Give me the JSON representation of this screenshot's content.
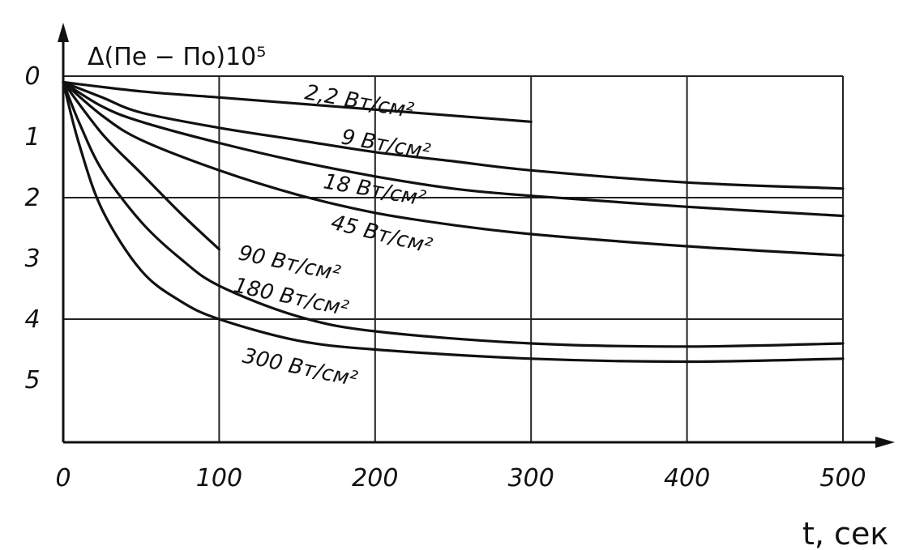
{
  "chart_data": {
    "type": "line",
    "title": "",
    "ylabel": "Δ(Пe − Пo)10⁵",
    "xlabel": "t, сек",
    "xlim": [
      0,
      500
    ],
    "ylim": [
      0,
      6
    ],
    "y_inverted": true,
    "grid": true,
    "x_ticks": [
      "0",
      "100",
      "200",
      "300",
      "400",
      "500"
    ],
    "y_ticks": [
      "0",
      "1",
      "2",
      "3",
      "4",
      "5"
    ],
    "series": [
      {
        "name": "2,2 Вт/см²",
        "x": [
          0,
          50,
          100,
          150,
          200,
          250,
          300
        ],
        "y": [
          0.1,
          0.25,
          0.35,
          0.45,
          0.55,
          0.65,
          0.75
        ]
      },
      {
        "name": "9 Вт/см²",
        "x": [
          0,
          25,
          50,
          100,
          150,
          200,
          250,
          300,
          400,
          500
        ],
        "y": [
          0.1,
          0.35,
          0.6,
          0.85,
          1.05,
          1.25,
          1.4,
          1.55,
          1.75,
          1.85
        ]
      },
      {
        "name": "18 Вт/см²",
        "x": [
          0,
          25,
          50,
          100,
          150,
          200,
          250,
          300,
          400,
          500
        ],
        "y": [
          0.1,
          0.5,
          0.75,
          1.1,
          1.4,
          1.65,
          1.85,
          1.97,
          2.15,
          2.3
        ]
      },
      {
        "name": "45 Вт/см²",
        "x": [
          0,
          25,
          50,
          100,
          150,
          200,
          250,
          300,
          400,
          500
        ],
        "y": [
          0.1,
          0.65,
          1.05,
          1.55,
          1.95,
          2.25,
          2.45,
          2.6,
          2.8,
          2.95
        ]
      },
      {
        "name": "90 Вт/см²",
        "x": [
          0,
          25,
          50,
          75,
          100
        ],
        "y": [
          0.1,
          0.95,
          1.6,
          2.25,
          2.85
        ]
      },
      {
        "name": "180 Вт/см²",
        "x": [
          0,
          10,
          25,
          50,
          75,
          100,
          150,
          200,
          300,
          400,
          500
        ],
        "y": [
          0.1,
          0.75,
          1.55,
          2.4,
          3.0,
          3.45,
          3.95,
          4.2,
          4.4,
          4.45,
          4.4
        ]
      },
      {
        "name": "300 Вт/см²",
        "x": [
          0,
          10,
          25,
          50,
          75,
          100,
          150,
          200,
          300,
          400,
          500
        ],
        "y": [
          0.1,
          1.1,
          2.2,
          3.2,
          3.7,
          4.0,
          4.35,
          4.5,
          4.65,
          4.7,
          4.65
        ]
      }
    ]
  }
}
